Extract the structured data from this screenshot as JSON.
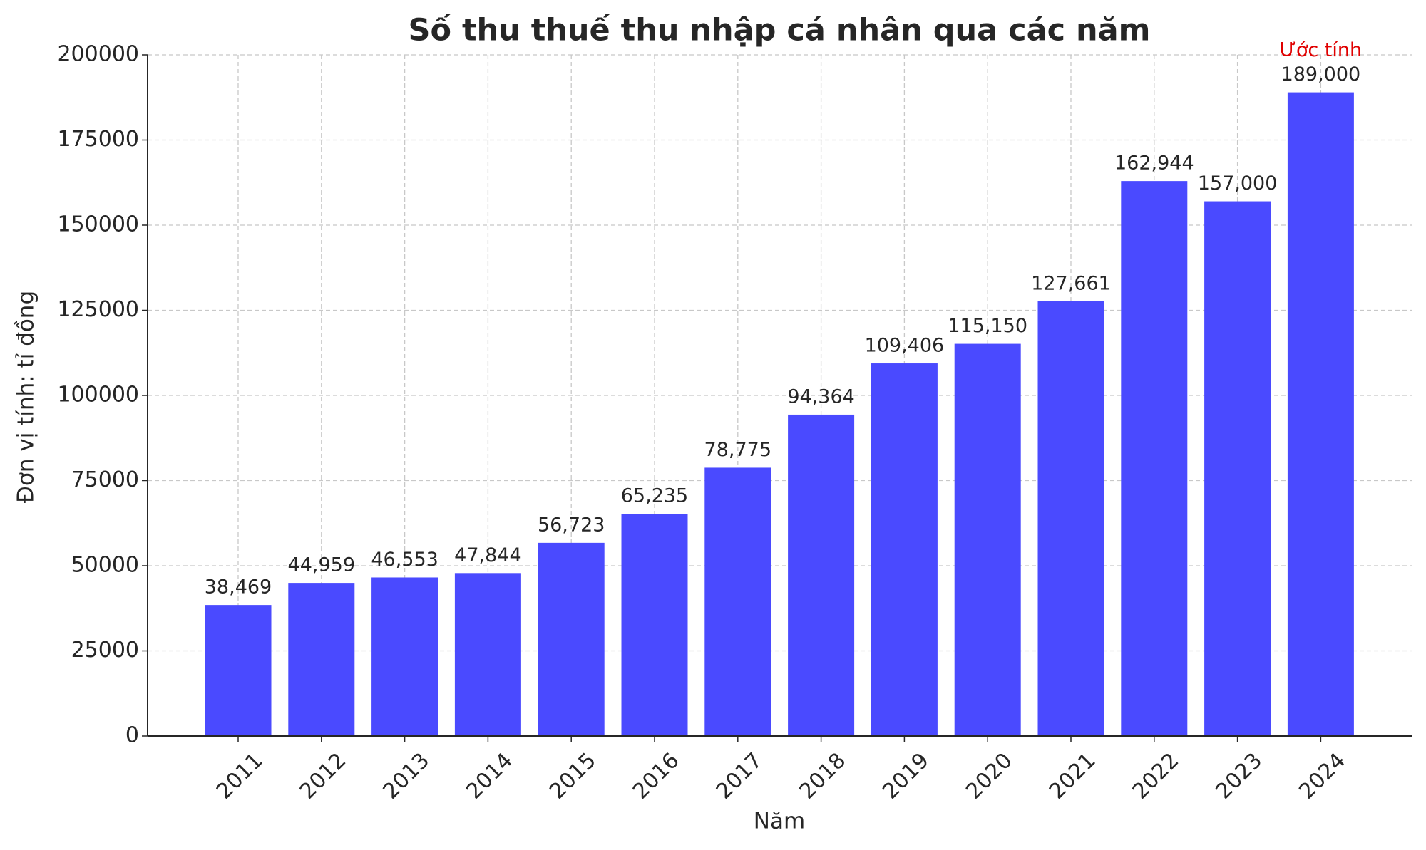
{
  "chart_data": {
    "type": "bar",
    "title": "Số thu thuế thu nhập cá nhân qua các năm",
    "x_label": "Năm",
    "y_label": "Đơn vị tính: tỉ đồng",
    "categories": [
      "2011",
      "2012",
      "2013",
      "2014",
      "2015",
      "2016",
      "2017",
      "2018",
      "2019",
      "2020",
      "2021",
      "2022",
      "2023",
      "2024"
    ],
    "values": [
      38469,
      44959,
      46553,
      47844,
      56723,
      65235,
      78775,
      94364,
      109406,
      115150,
      127661,
      162944,
      157000,
      189000
    ],
    "value_labels": [
      "38,469",
      "44,959",
      "46,553",
      "47,844",
      "56,723",
      "65,235",
      "78,775",
      "94,364",
      "109,406",
      "115,150",
      "127,661",
      "162,944",
      "157,000",
      "189,000"
    ],
    "annotation": "Ước tính",
    "annotation_color": "#e00000",
    "color": "#4a4aff",
    "ylim": [
      0,
      200000
    ],
    "yticks": [
      0,
      25000,
      50000,
      75000,
      100000,
      125000,
      150000,
      175000,
      200000
    ],
    "grid": true
  }
}
